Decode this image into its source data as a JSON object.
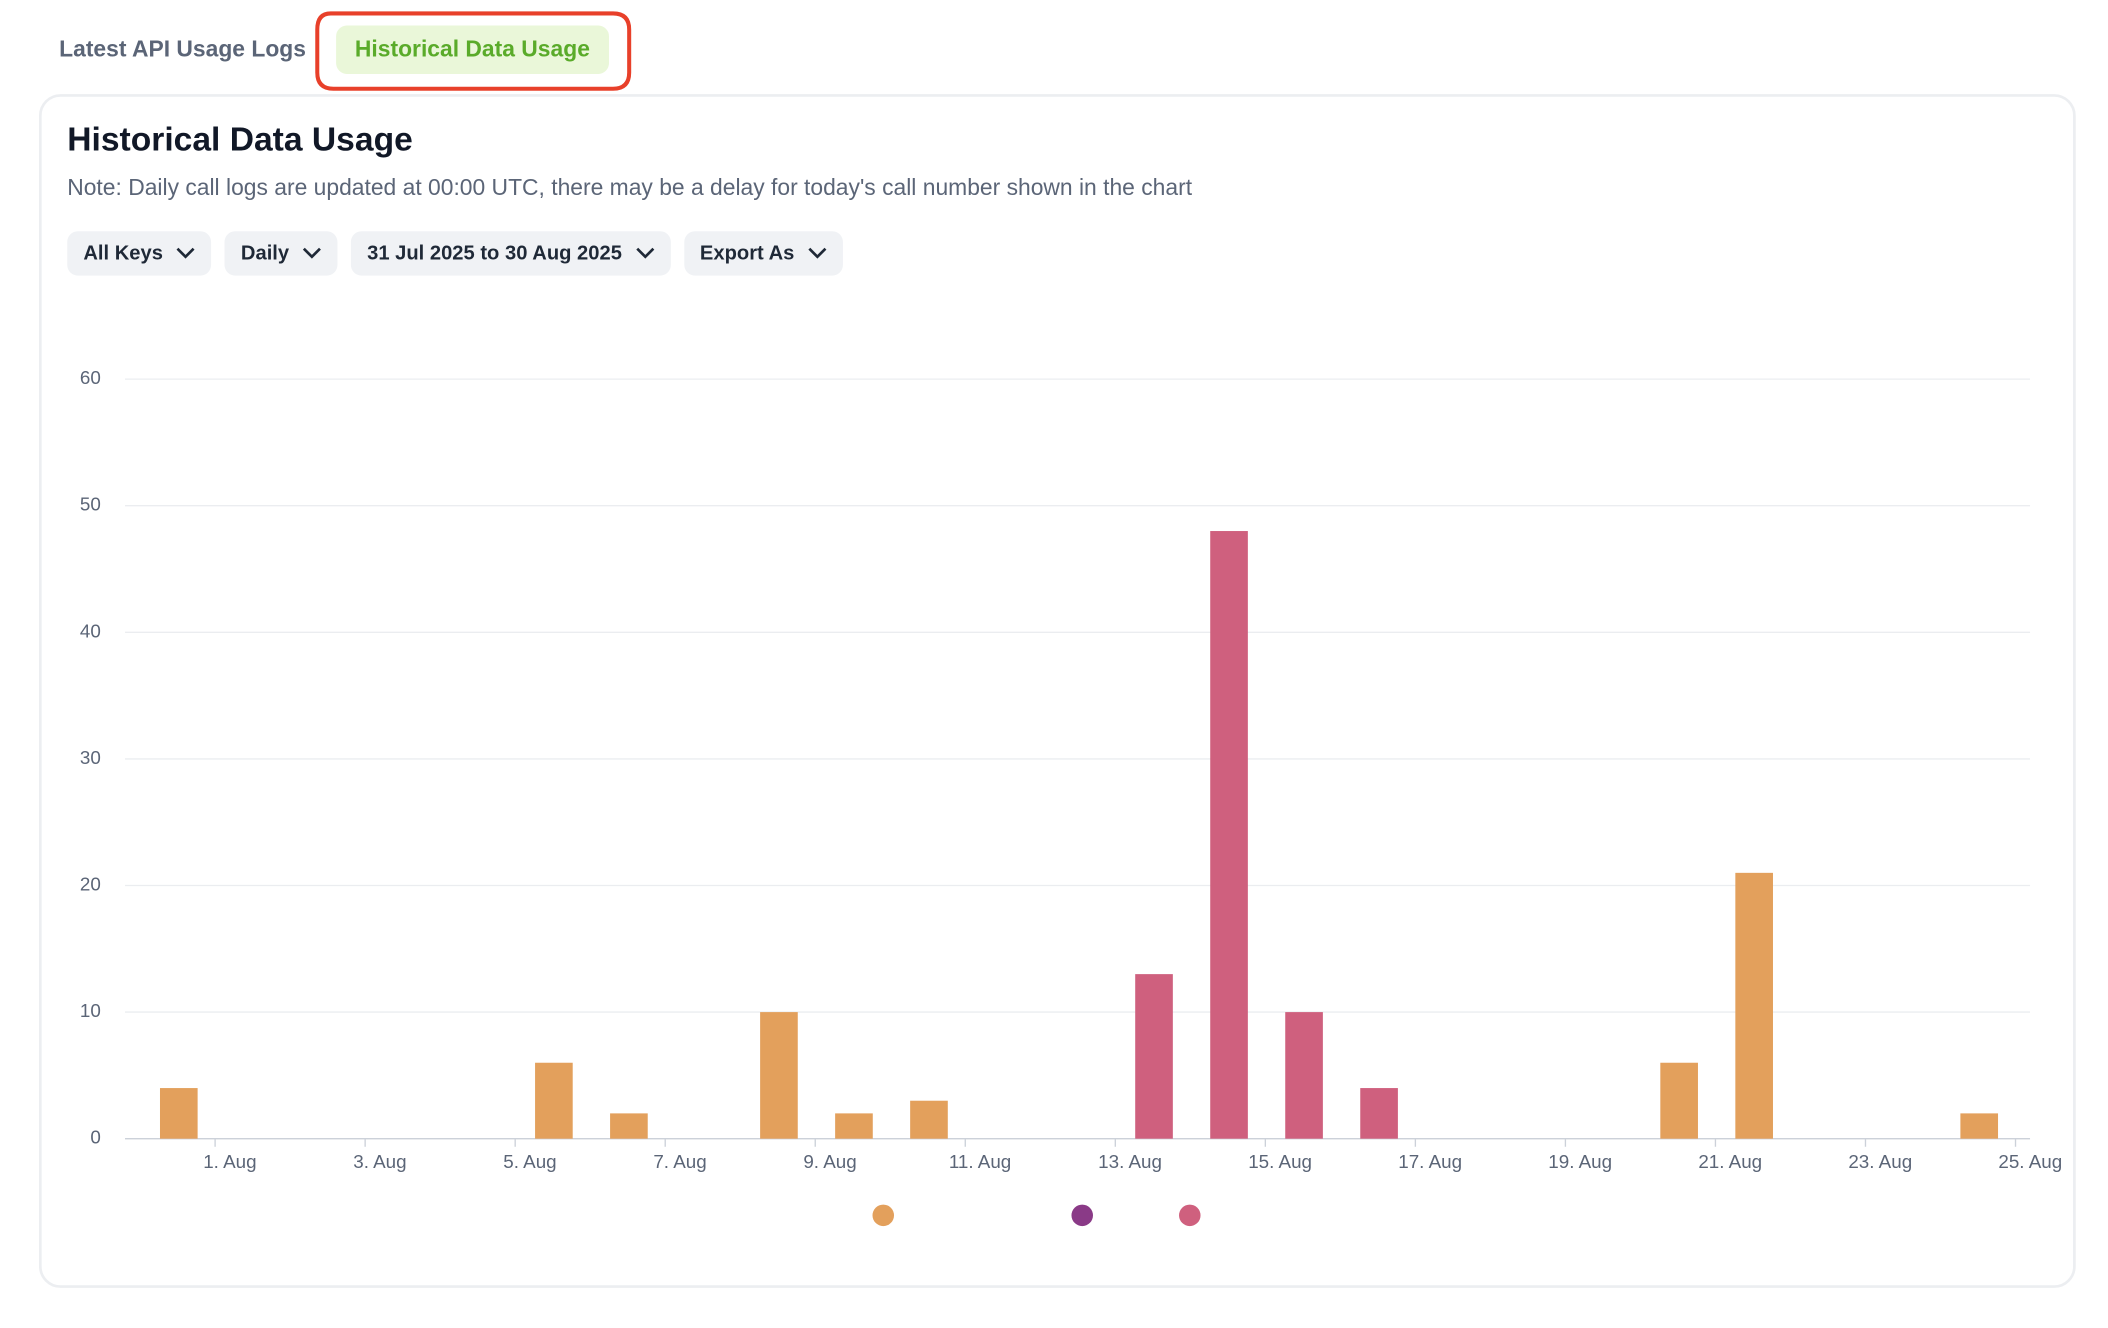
{
  "tabs": [
    "Latest API Usage Logs",
    "Historical Data Usage"
  ],
  "card": {
    "title": "Historical Data Usage",
    "note": "Note: Daily call logs are updated at 00:00 UTC, there may be a delay for today's call number shown in the chart",
    "filters": [
      "All Keys",
      "Daily",
      "31 Jul 2025 to 30 Aug 2025",
      "Export As"
    ]
  },
  "chart_data": {
    "type": "bar",
    "stacked": true,
    "grid": true,
    "categories": [
      "1. Aug",
      null,
      "3. Aug",
      null,
      "5. Aug",
      null,
      "7. Aug",
      null,
      "9. Aug",
      null,
      "11. Aug",
      null,
      "13. Aug",
      null,
      "15. Aug",
      null,
      "17. Aug",
      null,
      "19. Aug",
      null,
      "21. Aug",
      null,
      "23. Aug",
      null,
      "25. Aug"
    ],
    "series": [
      {
        "color": "#e3a05c",
        "values": [
          4,
          0,
          0,
          0,
          0,
          6,
          2,
          0,
          10,
          2,
          3,
          0,
          0,
          0,
          0,
          0,
          0,
          0,
          0,
          0,
          6,
          21,
          0,
          0,
          2
        ]
      },
      {
        "color": "#8a3a87",
        "values": [
          0,
          0,
          0,
          0,
          0,
          0,
          0,
          0,
          0,
          0,
          0,
          0,
          0,
          0,
          0,
          0,
          0,
          0,
          0,
          0,
          0,
          0,
          0,
          0,
          0
        ]
      },
      {
        "color": "#cf607e",
        "values": [
          0,
          0,
          0,
          0,
          0,
          0,
          0,
          0,
          0,
          0,
          0,
          0,
          0,
          13,
          48,
          10,
          4,
          0,
          0,
          0,
          0,
          0,
          0,
          0,
          0
        ]
      }
    ],
    "ylim": [
      0,
      60
    ],
    "yticks": [
      0,
      10,
      20,
      30,
      40,
      50,
      60
    ]
  }
}
